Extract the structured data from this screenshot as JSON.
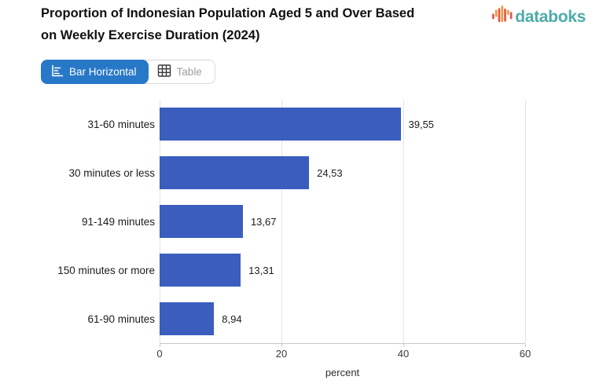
{
  "header": {
    "title_lines": [
      "Proportion of Indonesian Population Aged 5 and Over Based",
      "on Weekly Exercise Duration (2024)"
    ],
    "brand": "databoks"
  },
  "toolbar": {
    "tabs": [
      {
        "label": "Bar Horizontal",
        "icon": "bar-horizontal-icon",
        "active": true
      },
      {
        "label": "Table",
        "icon": "table-icon",
        "active": false
      }
    ]
  },
  "colors": {
    "active_tab_blue": "#2878c8",
    "bar_blue": "#3a5dbe",
    "brand_teal": "#4cabaa",
    "logo_orange": "#ee9b3f",
    "logo_red": "#e2574c",
    "gridline": "#e3e3e3",
    "axis_line": "#c9c9c9"
  },
  "chart_data": {
    "type": "bar",
    "orientation": "horizontal",
    "title": "Proportion of Indonesian Population Aged 5 and Over Based on Weekly Exercise Duration (2024)",
    "categories": [
      "31-60 minutes",
      "30 minutes or less",
      "91-149 minutes",
      "150 minutes or more",
      "61-90 minutes"
    ],
    "values": [
      39.55,
      24.53,
      13.67,
      13.31,
      8.94
    ],
    "value_labels": [
      "39,55",
      "24,53",
      "13,67",
      "13,31",
      "8,94"
    ],
    "xlabel": "percent",
    "xlim": [
      0,
      60
    ],
    "xticks": [
      0,
      20,
      40,
      60
    ],
    "bar_color": "#3a5dbe",
    "grid": true,
    "legend": "none"
  }
}
